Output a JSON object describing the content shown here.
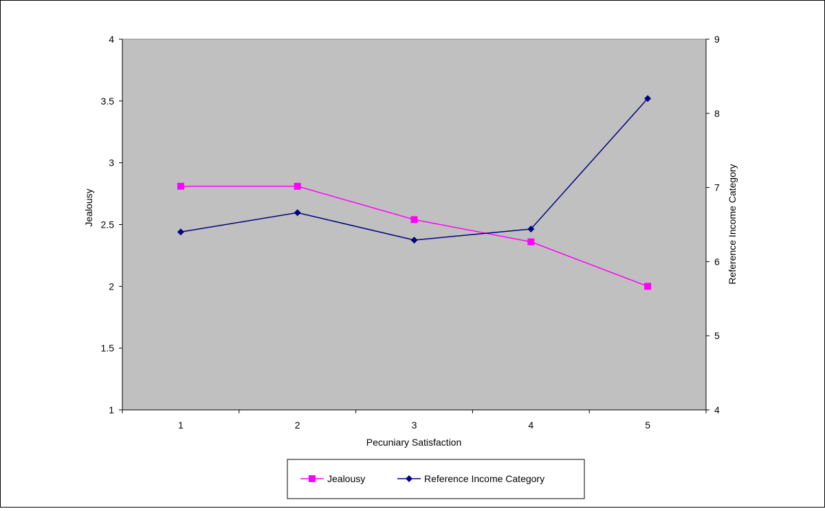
{
  "chart_data": {
    "type": "line",
    "title": "",
    "xlabel": "Pecuniary Satisfaction",
    "ylabel": "Jealousy",
    "y2label": "Reference Income Category",
    "categories": [
      "1",
      "2",
      "3",
      "4",
      "5"
    ],
    "ylim": [
      1,
      4
    ],
    "yticks": [
      "1",
      "1.5",
      "2",
      "2.5",
      "3",
      "3.5",
      "4"
    ],
    "y2lim": [
      4,
      9
    ],
    "y2ticks": [
      "4",
      "5",
      "6",
      "7",
      "8",
      "9"
    ],
    "grid": false,
    "plot_background": "#C0C0C0",
    "legend_position": "bottom",
    "series": [
      {
        "name": "Jealousy",
        "axis": "left",
        "color": "#FF00FF",
        "marker": "square",
        "values": [
          2.81,
          2.81,
          2.54,
          2.36,
          2.0
        ]
      },
      {
        "name": "Reference Income Category",
        "axis": "right",
        "color": "#000080",
        "marker": "diamond",
        "values": [
          6.4,
          6.66,
          6.29,
          6.44,
          8.2
        ]
      }
    ]
  }
}
